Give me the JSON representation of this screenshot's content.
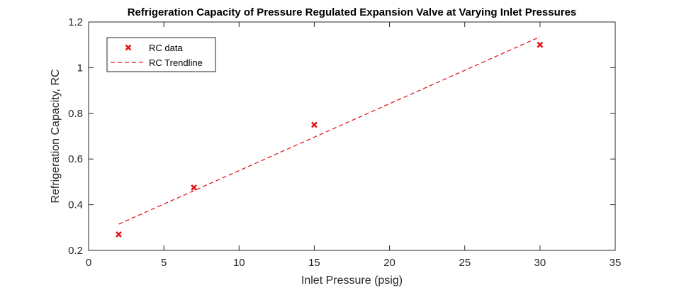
{
  "chart_data": {
    "type": "scatter",
    "title": "Refrigeration Capacity of Pressure Regulated Expansion Valve at Varying Inlet Pressures",
    "xlabel": "Inlet Pressure (psig)",
    "ylabel": "Refrigeration Capacity, RC",
    "xlim": [
      0,
      35
    ],
    "ylim": [
      0.2,
      1.2
    ],
    "xticks": [
      0,
      5,
      10,
      15,
      20,
      25,
      30,
      35
    ],
    "yticks": [
      0.2,
      0.4,
      0.6,
      0.8,
      1,
      1.2
    ],
    "grid": false,
    "legend_position": "top-left",
    "series": [
      {
        "name": "RC data",
        "kind": "marker-x",
        "color": "#e0191f",
        "points": [
          {
            "x": 2,
            "y": 0.27
          },
          {
            "x": 7,
            "y": 0.475
          },
          {
            "x": 15,
            "y": 0.75
          },
          {
            "x": 30,
            "y": 1.1
          }
        ]
      },
      {
        "name": "RC Trendline",
        "kind": "dashed-line",
        "color": "#e0191f",
        "points": [
          {
            "x": 2,
            "y": 0.315
          },
          {
            "x": 30,
            "y": 1.135
          }
        ]
      }
    ]
  }
}
